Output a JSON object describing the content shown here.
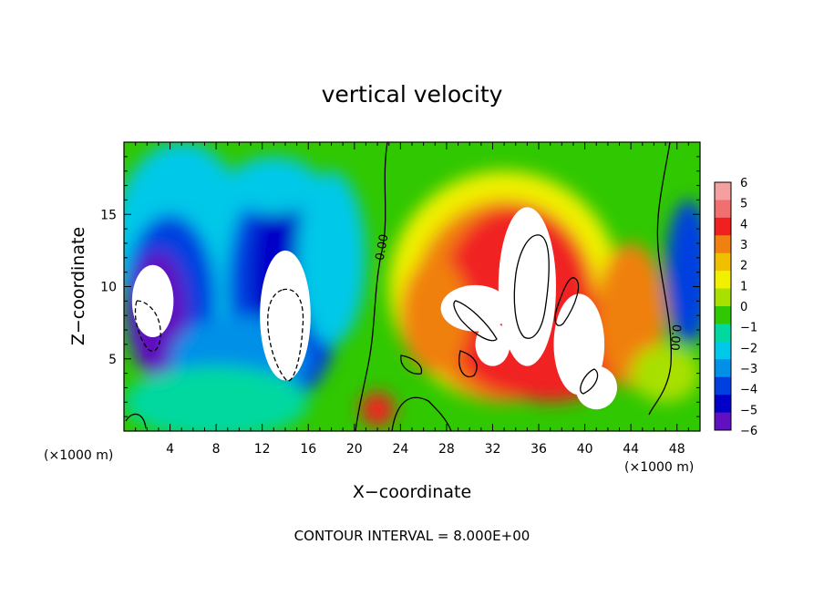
{
  "chart_data": {
    "type": "heatmap",
    "title": "vertical velocity",
    "xlabel": "X−coordinate",
    "ylabel": "Z−coordinate",
    "xlim": [
      0,
      50
    ],
    "ylim": [
      0,
      20
    ],
    "x_unit_left": "(×1000 m)",
    "x_unit_right": "(×1000 m)",
    "x_ticks": [
      4,
      8,
      12,
      16,
      20,
      24,
      28,
      32,
      36,
      40,
      44,
      48
    ],
    "x_tick_labels": [
      "4",
      "8",
      "12",
      "16",
      "20",
      "24",
      "28",
      "32",
      "36",
      "40",
      "44",
      "48"
    ],
    "y_ticks": [
      5,
      10,
      15
    ],
    "y_tick_labels": [
      "5",
      "10",
      "15"
    ],
    "colorbar": {
      "levels": [
        6,
        5,
        4,
        3,
        2,
        1,
        0,
        -1,
        -2,
        -3,
        -4,
        -5,
        -6
      ],
      "labels": [
        "6",
        "5",
        "4",
        "3",
        "2",
        "1",
        "0",
        "−1",
        "−2",
        "−3",
        "−4",
        "−5",
        "−6"
      ],
      "colors": [
        "#f5a0a0",
        "#f07070",
        "#f02020",
        "#f08010",
        "#f0c000",
        "#f0f000",
        "#a8e000",
        "#30c800",
        "#00d8a0",
        "#00c8e8",
        "#0090e8",
        "#0040e0",
        "#0000c8",
        "#6010c0"
      ]
    },
    "contour_label": "0.00",
    "contour_interval_text": "CONTOUR INTERVAL = 8.000E+00",
    "cells": [
      {
        "x": 3,
        "z": 9,
        "w": -7,
        "desc": "downdraft core"
      },
      {
        "x": 14,
        "z": 8,
        "w": -7,
        "desc": "downdraft core"
      },
      {
        "x": 8,
        "z": 6,
        "w": -4
      },
      {
        "x": 6,
        "z": 13,
        "w": -3
      },
      {
        "x": 35,
        "z": 10,
        "w": 7,
        "desc": "updraft core"
      },
      {
        "x": 40,
        "z": 5,
        "w": 7
      },
      {
        "x": 30,
        "z": 8,
        "w": 5
      },
      {
        "x": 22,
        "z": 1,
        "w": 4
      },
      {
        "x": 49,
        "z": 12,
        "w": -4
      }
    ]
  },
  "colors": {
    "white_core": "#ffffff",
    "background_field": "#30c800"
  }
}
